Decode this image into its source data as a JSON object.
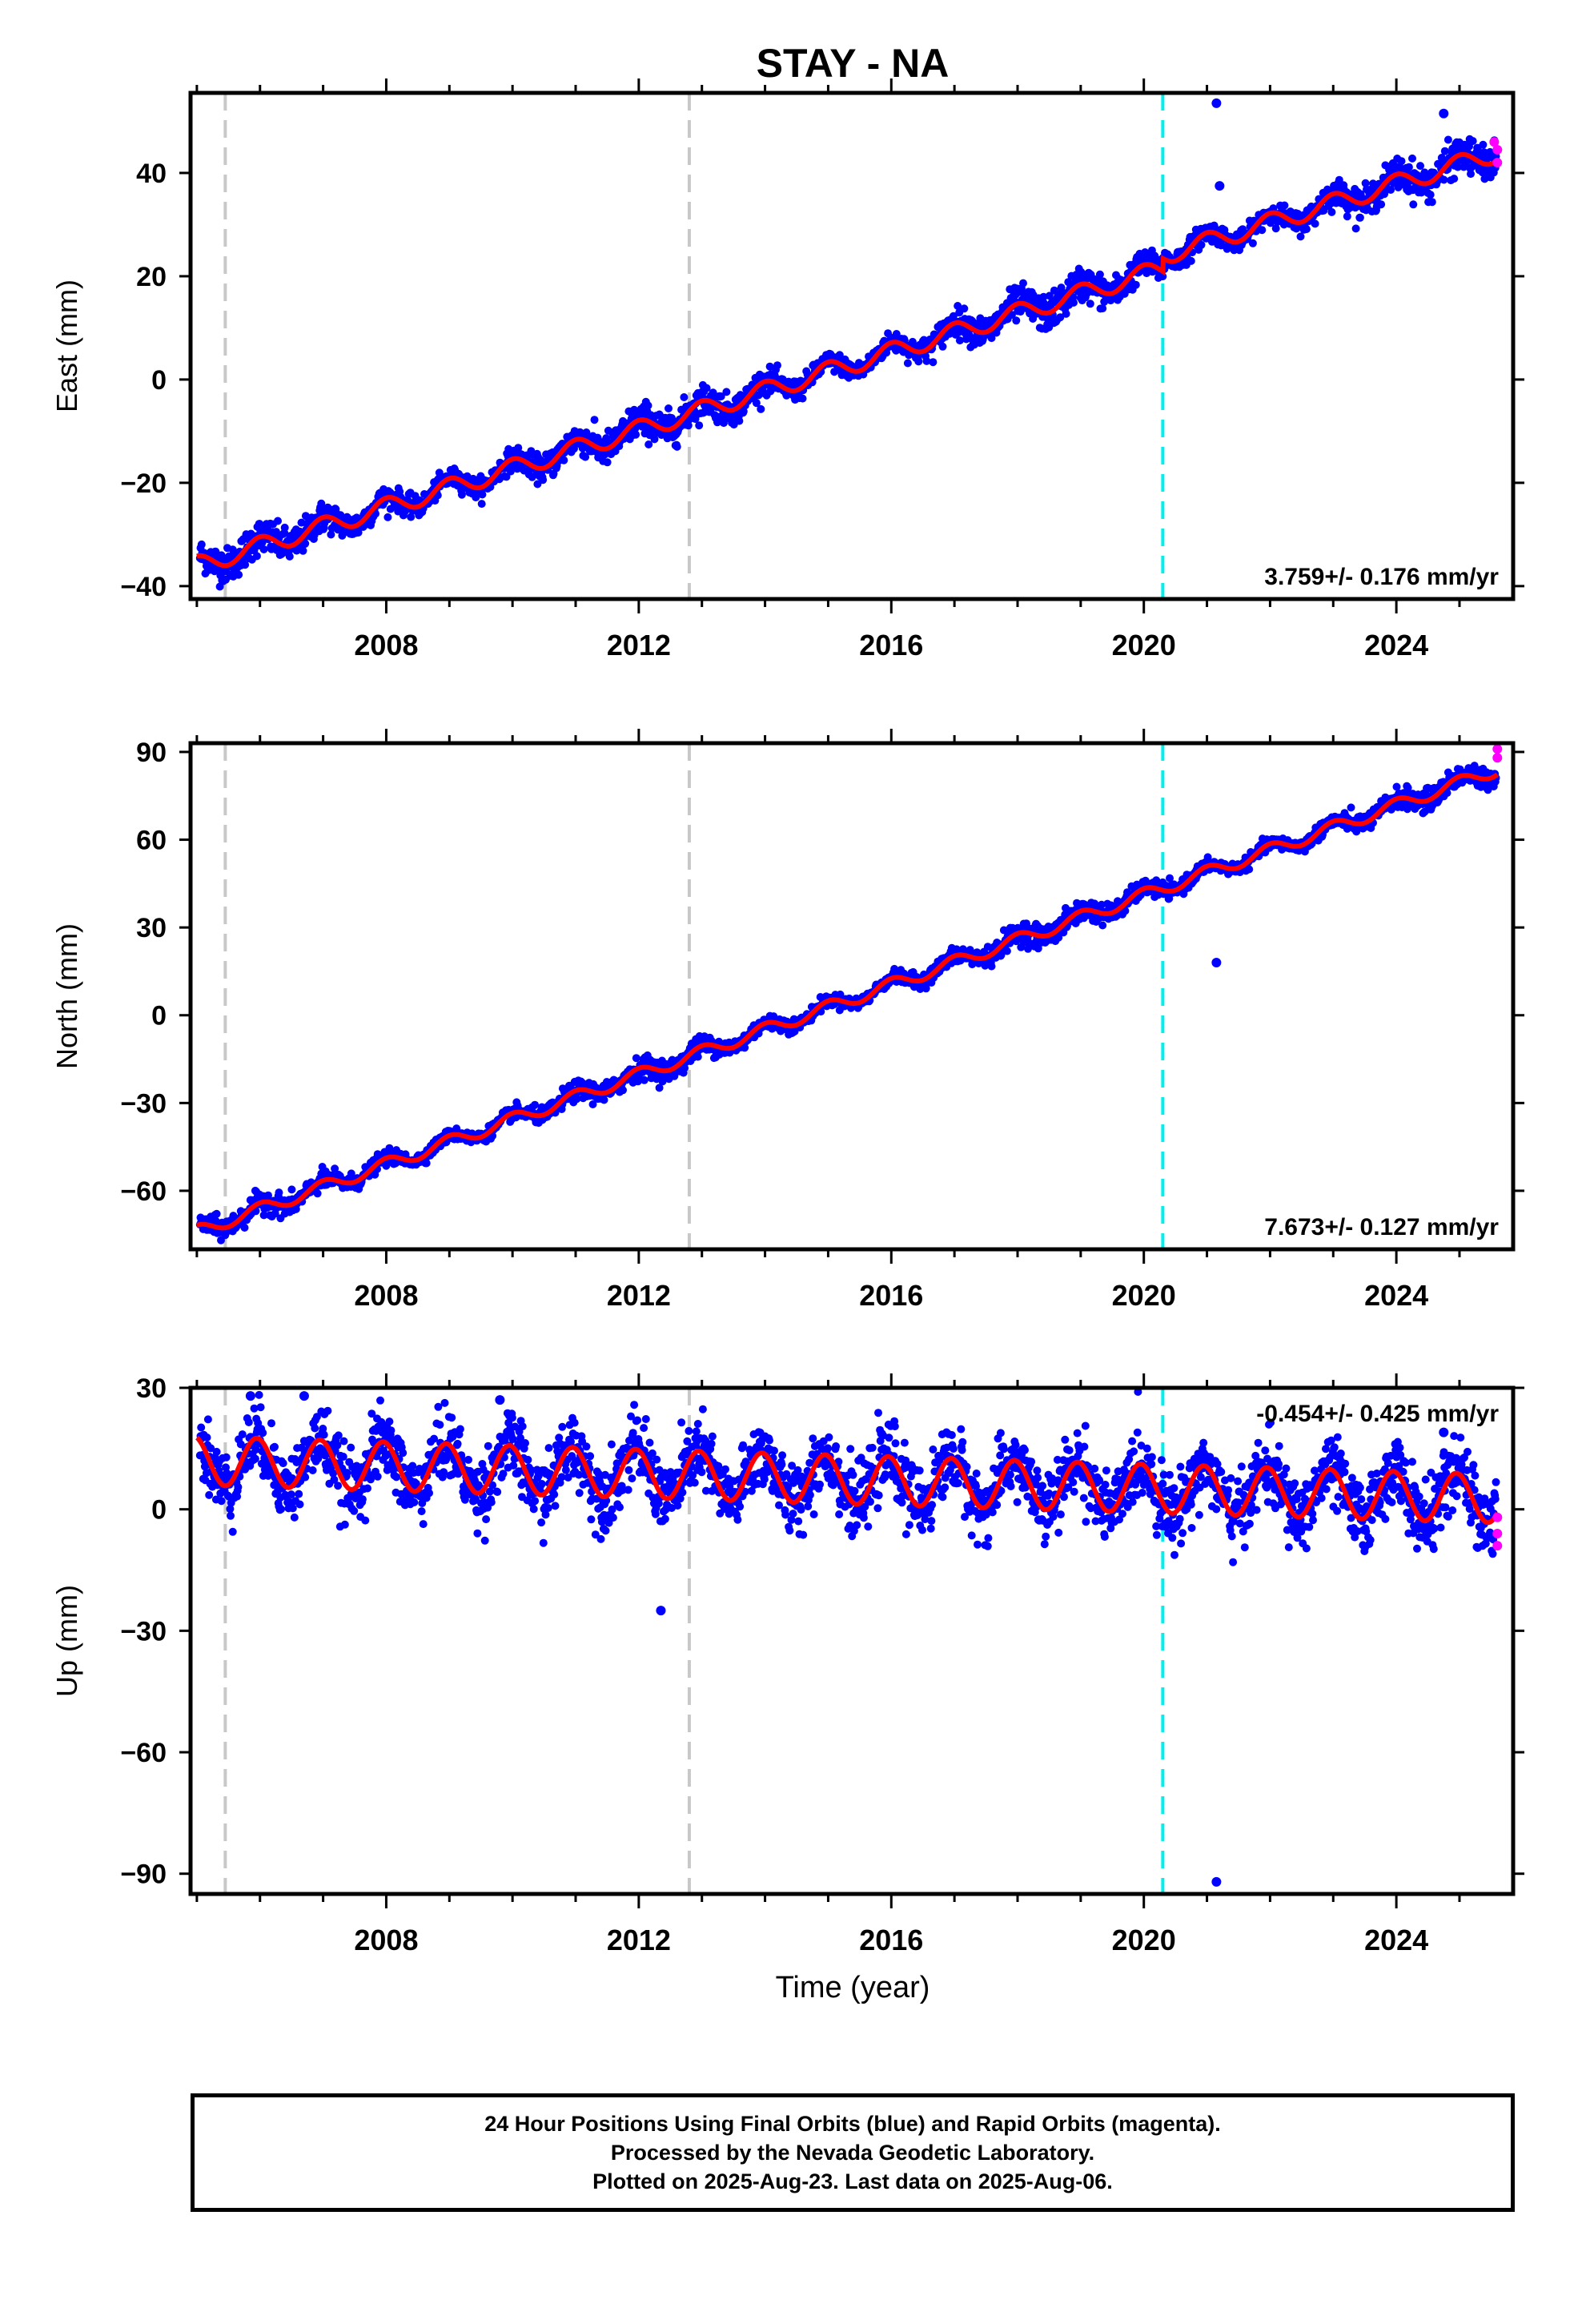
{
  "title": "STAY - NA",
  "xlabel": "Time (year)",
  "colors": {
    "final_orbits": "#0000ff",
    "rapid_orbits": "#ff00ff",
    "model": "#ff0000",
    "equipment_change": "#c8c8c8",
    "offset_event": "#00f0f0"
  },
  "footer": {
    "line1": "24 Hour Positions Using Final Orbits (blue) and Rapid Orbits (magenta).",
    "line2": "Processed by the Nevada Geodetic Laboratory.",
    "line3": "Plotted on 2025-Aug-23. Last data on 2025-Aug-06."
  },
  "chart_data": [
    {
      "type": "scatter",
      "ylabel": "East (mm)",
      "rate_label": "3.759+/- 0.176 mm/yr",
      "xlim": [
        2004.9,
        2025.85
      ],
      "ylim": [
        -42.5,
        55.5
      ],
      "xticks": [
        2008,
        2012,
        2016,
        2020,
        2024
      ],
      "yticks": [
        -40,
        -20,
        0,
        20,
        40
      ],
      "vlines_gray": [
        2005.45,
        2012.8
      ],
      "vline_cyan": 2020.3,
      "rate_mm_yr": 3.759,
      "offset_mm": 2.5,
      "model_points": [
        [
          2005.0,
          -36.0
        ],
        [
          2005.5,
          -38.2
        ],
        [
          2006.0,
          -33.0
        ],
        [
          2007.0,
          -30.0
        ],
        [
          2008.0,
          -25.5
        ],
        [
          2009.0,
          -21.0
        ],
        [
          2010.0,
          -18.0
        ],
        [
          2011.0,
          -14.0
        ],
        [
          2012.0,
          -10.0
        ],
        [
          2013.0,
          -6.0
        ],
        [
          2014.0,
          -2.5
        ],
        [
          2015.0,
          1.0
        ],
        [
          2016.0,
          5.0
        ],
        [
          2017.0,
          8.0
        ],
        [
          2018.0,
          12.0
        ],
        [
          2019.0,
          16.0
        ],
        [
          2020.3,
          20.0
        ],
        [
          2020.3,
          24.0
        ],
        [
          2021.0,
          29.0
        ],
        [
          2022.0,
          31.0
        ],
        [
          2023.0,
          35.0
        ],
        [
          2024.0,
          39.0
        ],
        [
          2025.5,
          44.0
        ]
      ],
      "outliers": [
        [
          2021.15,
          53.5
        ],
        [
          2024.75,
          51.5
        ],
        [
          2021.2,
          37.5
        ]
      ],
      "rapid_points": [
        [
          2025.55,
          46.0
        ],
        [
          2025.6,
          44.5
        ],
        [
          2025.6,
          42.0
        ]
      ]
    },
    {
      "type": "scatter",
      "ylabel": "North (mm)",
      "rate_label": "7.673+/- 0.127 mm/yr",
      "xlim": [
        2004.9,
        2025.85
      ],
      "ylim": [
        -80,
        93
      ],
      "xticks": [
        2008,
        2012,
        2016,
        2020,
        2024
      ],
      "yticks": [
        -60,
        -30,
        0,
        30,
        60,
        90
      ],
      "vlines_gray": [
        2005.45,
        2012.8
      ],
      "vline_cyan": 2020.3,
      "rate_mm_yr": 7.673,
      "offset_mm": 0,
      "model_points": [
        [
          2005.0,
          -74.0
        ],
        [
          2005.5,
          -68.0
        ],
        [
          2006.0,
          -68.0
        ],
        [
          2007.0,
          -60.0
        ],
        [
          2008.0,
          -52.0
        ],
        [
          2009.0,
          -44.0
        ],
        [
          2010.0,
          -36.0
        ],
        [
          2011.0,
          -28.0
        ],
        [
          2012.0,
          -21.0
        ],
        [
          2013.0,
          -14.0
        ],
        [
          2014.0,
          -6.0
        ],
        [
          2015.0,
          1.0
        ],
        [
          2016.0,
          9.0
        ],
        [
          2017.0,
          16.0
        ],
        [
          2018.0,
          24.0
        ],
        [
          2019.0,
          32.0
        ],
        [
          2020.3,
          39.0
        ],
        [
          2021.0,
          45.0
        ],
        [
          2022.0,
          52.0
        ],
        [
          2023.0,
          60.0
        ],
        [
          2024.0,
          67.0
        ],
        [
          2025.5,
          84.0
        ]
      ],
      "outliers": [
        [
          2021.15,
          18.0
        ]
      ],
      "rapid_points": [
        [
          2025.6,
          88.0
        ],
        [
          2025.6,
          91.0
        ]
      ]
    },
    {
      "type": "scatter",
      "ylabel": "Up (mm)",
      "rate_label": "-0.454+/- 0.425 mm/yr",
      "xlim": [
        2004.9,
        2025.85
      ],
      "ylim": [
        -95,
        30
      ],
      "xticks": [
        2008,
        2012,
        2016,
        2020,
        2024
      ],
      "yticks": [
        -90,
        -60,
        -30,
        0,
        30
      ],
      "vlines_gray": [
        2005.45,
        2012.8
      ],
      "vline_cyan": 2020.3,
      "rate_mm_yr": -0.454,
      "offset_mm": 0,
      "model_points": [
        [
          2005.0,
          12.0
        ],
        [
          2025.6,
          -8.0
        ]
      ],
      "outliers": [
        [
          2021.15,
          -92.0
        ],
        [
          2009.8,
          27.0
        ],
        [
          2012.35,
          -25.0
        ],
        [
          2005.85,
          28.0
        ],
        [
          2006.7,
          28.0
        ],
        [
          2024.75,
          19.0
        ]
      ],
      "rapid_points": [
        [
          2025.6,
          -2.0
        ],
        [
          2025.6,
          -6.0
        ],
        [
          2025.6,
          -9.0
        ]
      ]
    }
  ]
}
